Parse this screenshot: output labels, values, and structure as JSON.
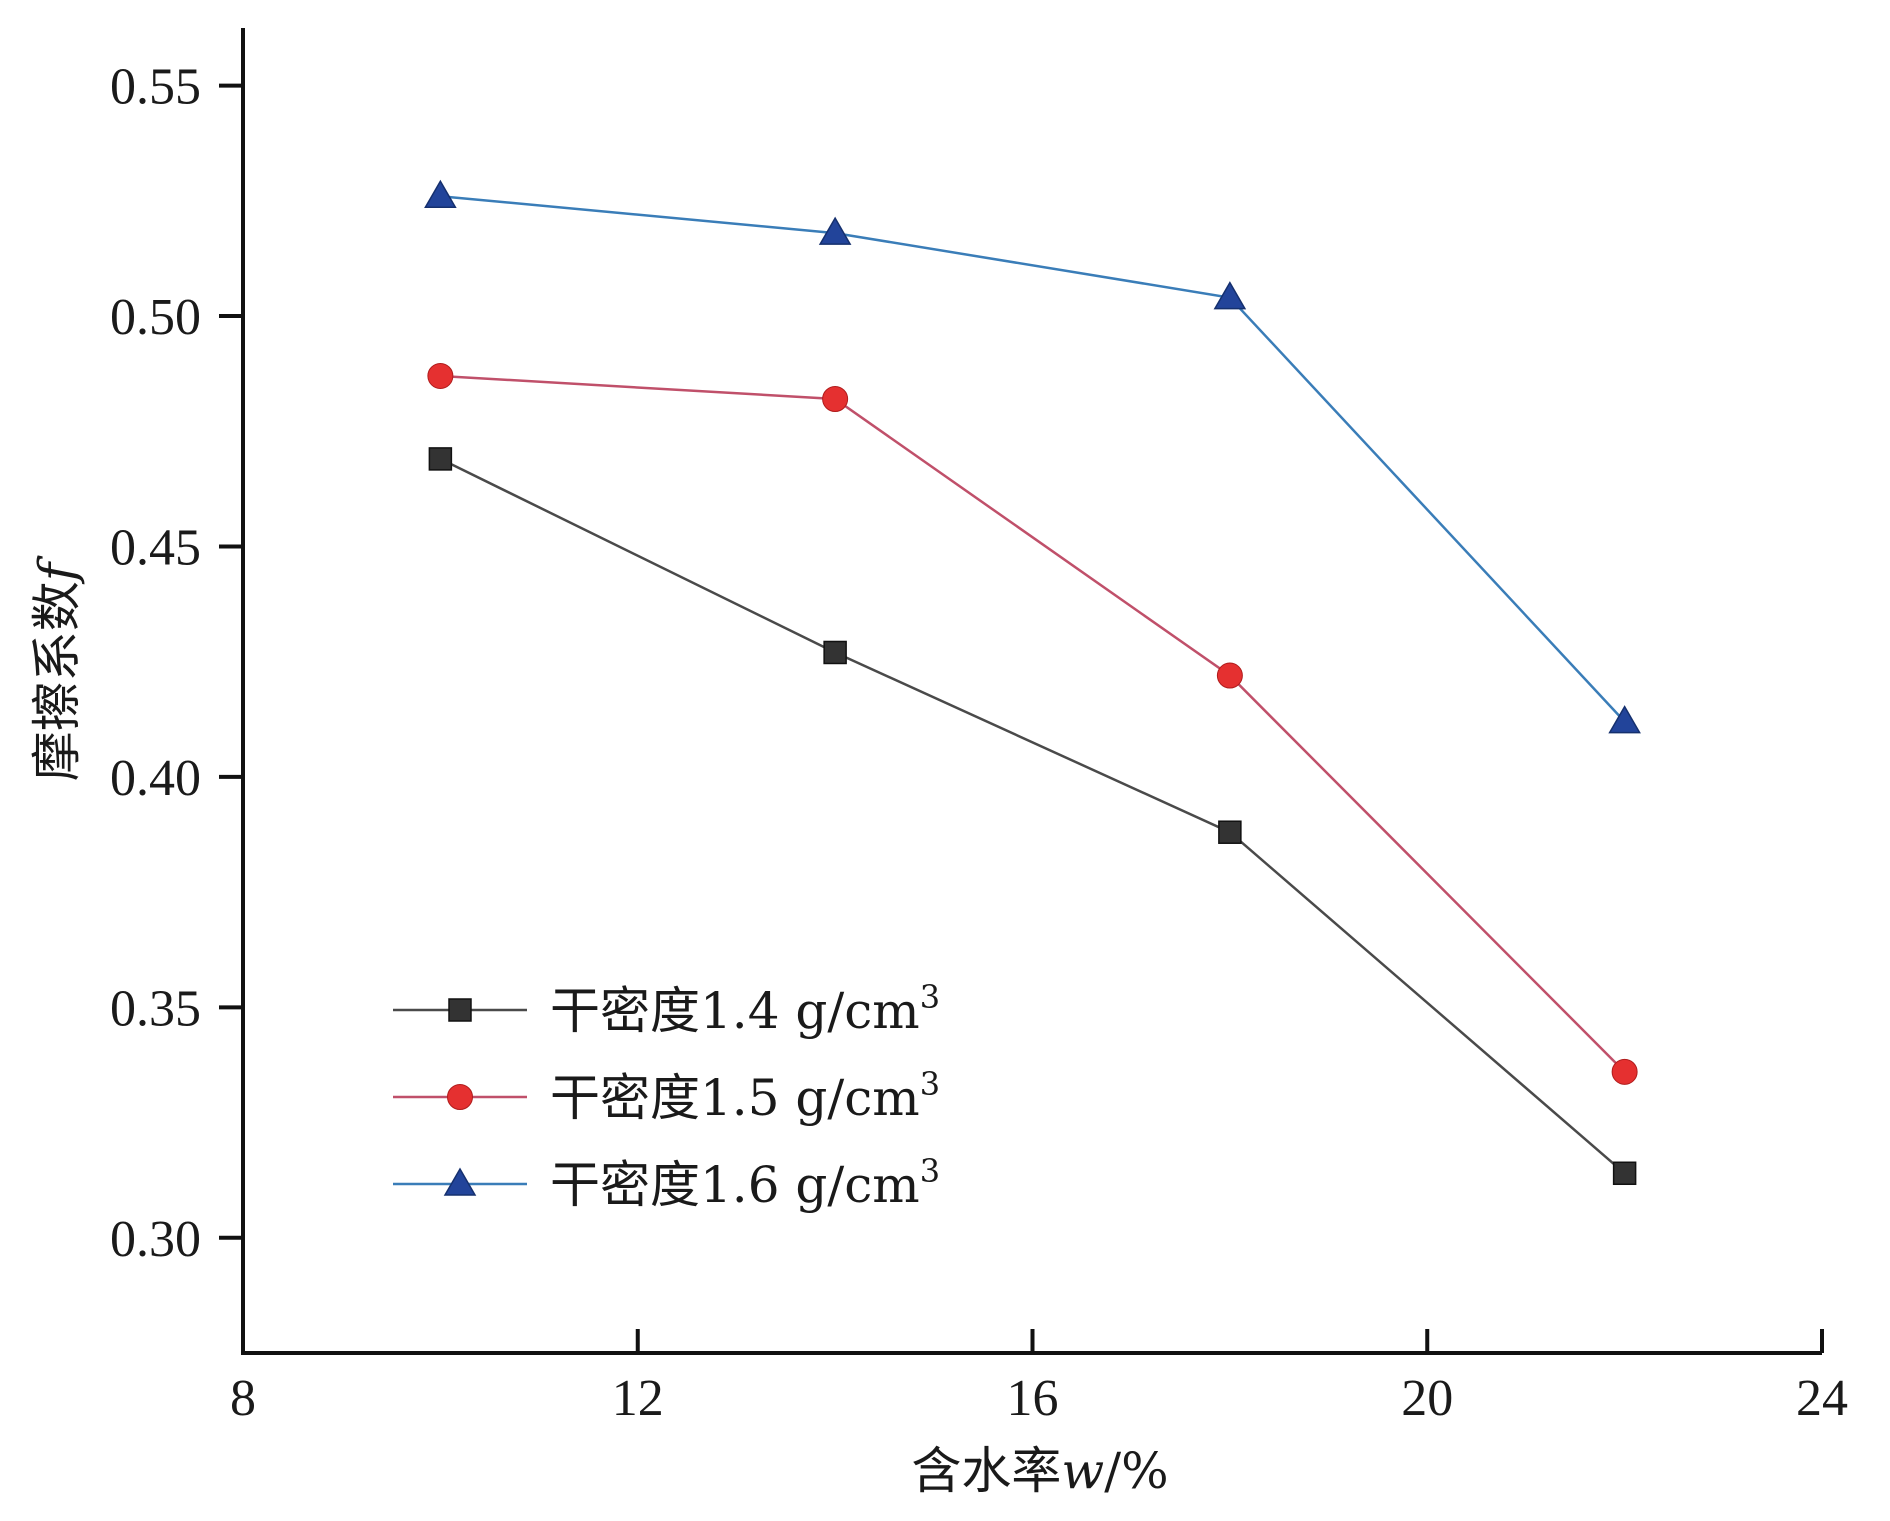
{
  "chart_data": {
    "type": "line",
    "title": "",
    "xlabel": "含水率",
    "xlabel_var": "w",
    "xlabel_unit": "/%",
    "ylabel": "摩擦系数",
    "ylabel_var": "f",
    "xlim": [
      8,
      24
    ],
    "ylim": [
      0.275,
      0.5625
    ],
    "xticks": [
      8,
      12,
      16,
      20,
      24
    ],
    "xtick_labels": [
      "8",
      "12",
      "16",
      "20",
      "24"
    ],
    "yticks": [
      0.3,
      0.35,
      0.4,
      0.45,
      0.5,
      0.55
    ],
    "ytick_labels": [
      "0.30",
      "0.35",
      "0.40",
      "0.45",
      "0.50",
      "0.55"
    ],
    "x": [
      10,
      14,
      18,
      22
    ],
    "legend_position": "bottom-left",
    "grid": false,
    "series": [
      {
        "name_prefix": "干密度1.4 g/cm",
        "name_sup": "3",
        "marker": "square",
        "line_color": "#4a4a4a",
        "marker_color": "#333333",
        "values": [
          0.469,
          0.427,
          0.388,
          0.314
        ]
      },
      {
        "name_prefix": "干密度1.5 g/cm",
        "name_sup": "3",
        "marker": "circle",
        "line_color": "#c0506a",
        "marker_color": "#e53030",
        "values": [
          0.487,
          0.482,
          0.422,
          0.336
        ]
      },
      {
        "name_prefix": "干密度1.6 g/cm",
        "name_sup": "3",
        "marker": "triangle",
        "line_color": "#3a7db8",
        "marker_color": "#22449a",
        "values": [
          0.526,
          0.518,
          0.504,
          0.412
        ]
      }
    ]
  }
}
